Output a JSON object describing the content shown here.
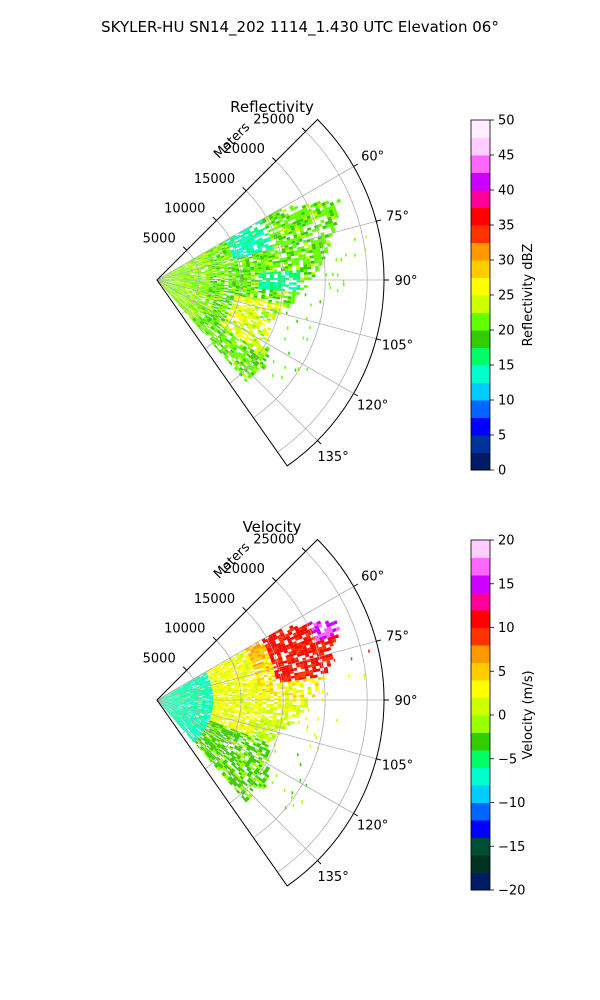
{
  "figure": {
    "suptitle": "SKYLER-HU  SN14_202  1114_1.430 UTC Elevation 06°"
  },
  "chart_data": [
    {
      "type": "heatmap",
      "projection": "polar-sector",
      "title": "Reflectivity",
      "radial_label": "Meters",
      "radial_ticks": [
        "5000",
        "10000",
        "15000",
        "20000",
        "25000"
      ],
      "radial_tick_values": [
        5000,
        10000,
        15000,
        20000,
        25000
      ],
      "rlim": [
        0,
        27000
      ],
      "angle_ticks": [
        "60°",
        "75°",
        "90°",
        "105°",
        "120°",
        "135°"
      ],
      "angle_tick_values": [
        60,
        75,
        90,
        105,
        120,
        135
      ],
      "angle_range_deg": [
        45,
        145
      ],
      "grid": true,
      "colorbar": {
        "label": "Reflectivity dBZ",
        "ticks": [
          "0",
          "5",
          "10",
          "15",
          "20",
          "25",
          "30",
          "35",
          "40",
          "45",
          "50"
        ],
        "tick_values": [
          0,
          5,
          10,
          15,
          20,
          25,
          30,
          35,
          40,
          45,
          50
        ],
        "range": [
          0,
          50
        ],
        "colors": [
          "#001a66",
          "#003399",
          "#0000ff",
          "#0066ff",
          "#00ccff",
          "#00ffcc",
          "#00ff66",
          "#33cc00",
          "#66ff00",
          "#ccff00",
          "#ffff00",
          "#ffcc00",
          "#ff9900",
          "#ff3300",
          "#ff0000",
          "#ff0099",
          "#cc00ff",
          "#ff66ff",
          "#ffccff",
          "#ffeeff"
        ]
      }
    },
    {
      "type": "heatmap",
      "projection": "polar-sector",
      "title": "Velocity",
      "radial_label": "Meters",
      "radial_ticks": [
        "5000",
        "10000",
        "15000",
        "20000",
        "25000"
      ],
      "radial_tick_values": [
        5000,
        10000,
        15000,
        20000,
        25000
      ],
      "rlim": [
        0,
        27000
      ],
      "angle_ticks": [
        "60°",
        "75°",
        "90°",
        "105°",
        "120°",
        "135°"
      ],
      "angle_tick_values": [
        60,
        75,
        90,
        105,
        120,
        135
      ],
      "angle_range_deg": [
        45,
        145
      ],
      "grid": true,
      "colorbar": {
        "label": "Velocity (m/s)",
        "ticks": [
          "−20",
          "−15",
          "−10",
          "−5",
          "0",
          "5",
          "10",
          "15",
          "20"
        ],
        "tick_values": [
          -20,
          -15,
          -10,
          -5,
          0,
          5,
          10,
          15,
          20
        ],
        "range": [
          -20,
          20
        ],
        "colors": [
          "#001a66",
          "#003322",
          "#004d33",
          "#0000ff",
          "#0066ff",
          "#00ccff",
          "#00ffcc",
          "#00ff66",
          "#33cc00",
          "#99ff00",
          "#ccff00",
          "#ffff00",
          "#ffcc00",
          "#ff9900",
          "#ff3300",
          "#ff0000",
          "#ff0099",
          "#cc00ff",
          "#ff66ff",
          "#ffccff"
        ]
      }
    }
  ]
}
